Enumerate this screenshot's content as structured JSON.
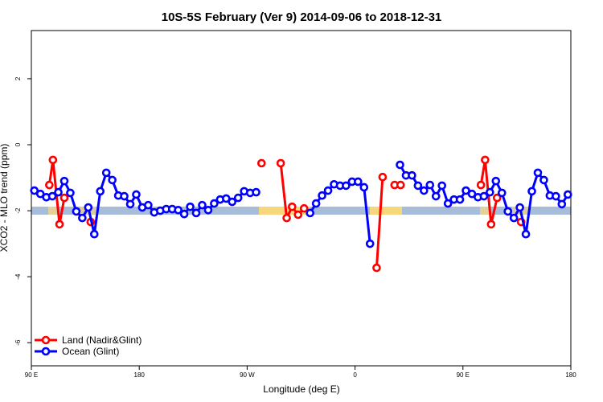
{
  "chart_data": {
    "type": "line",
    "title": "10S-5S February (Ver 9)   2014-09-06 to 2018-12-31",
    "x_label": "Longitude (deg E)",
    "y_label": "XCO2 - MLO trend (ppm)",
    "xlim": [
      90,
      540
    ],
    "xticks": [
      {
        "value": 90,
        "label": "90 E"
      },
      180,
      {
        "value": 270,
        "label": "90 W"
      },
      {
        "value": 360,
        "label": "0"
      },
      {
        "value": 450,
        "label": "90 E"
      },
      {
        "value": 540,
        "label": "180"
      }
    ],
    "ylim": [
      -6.7,
      3.46
    ],
    "yticks": [
      -6,
      -4,
      -2,
      0,
      2
    ],
    "legend": "bottom-left",
    "series": [
      {
        "name": "Land (Nadir&Glint)",
        "color": "#ff0000",
        "x": [
          105,
          108,
          113.5,
          117.5,
          null,
          139.5,
          null,
          282,
          null,
          298,
          303,
          307.5,
          312.5,
          317.5,
          null,
          378,
          383,
          null,
          393,
          398,
          null,
          465,
          468.5,
          473.5,
          478.5,
          null,
          498.5
        ],
        "values": [
          -1.22,
          -0.46,
          -2.41,
          -1.61,
          null,
          -2.34,
          null,
          -0.56,
          null,
          -0.56,
          -2.22,
          -1.88,
          -2.12,
          -1.93,
          null,
          -3.73,
          -0.98,
          null,
          -1.22,
          -1.22,
          null,
          -1.22,
          -0.46,
          -2.41,
          -1.61,
          null,
          -2.34
        ]
      },
      {
        "name": "Ocean (Glint)",
        "color": "#0000ff",
        "x": [
          92.5,
          97.5,
          102.5,
          107.5,
          112.5,
          117.5,
          122.5,
          127.5,
          132.5,
          137.5,
          142.5,
          147.5,
          152.5,
          157.5,
          162.5,
          167.5,
          172.5,
          177.5,
          182.5,
          187.5,
          192.5,
          197.5,
          202.5,
          207.5,
          212.5,
          217.5,
          222.5,
          227.5,
          232.5,
          237.5,
          242.5,
          247.5,
          252.5,
          257.5,
          262.5,
          267.5,
          272.5,
          277.5,
          282.5,
          287.5,
          292.5,
          297.5,
          302.5,
          307.5,
          312.5,
          317.5,
          322.5,
          327.5,
          332.5,
          337.5,
          342.5,
          347.5,
          352.5,
          357.5,
          362.5,
          367.5,
          372.5,
          377.5,
          382.5,
          387.5,
          392.5,
          397.5,
          402.5,
          407.5,
          412.5,
          417.5,
          422.5,
          427.5,
          432.5,
          437.5,
          442.5,
          447.5,
          452.5,
          457.5,
          462.5,
          467.5,
          472.5,
          477.5,
          482.5,
          487.5,
          492.5,
          497.5,
          502.5,
          507.5,
          512.5,
          517.5,
          522.5,
          527.5,
          532.5,
          537.5
        ],
        "values": [
          -1.39,
          -1.49,
          -1.59,
          -1.56,
          -1.44,
          -1.1,
          -1.46,
          -2.02,
          -2.22,
          -1.9,
          -2.71,
          -1.41,
          -0.85,
          -1.07,
          -1.54,
          -1.56,
          -1.8,
          -1.51,
          -1.9,
          -1.83,
          -2.05,
          -2.0,
          -1.95,
          -1.95,
          -1.98,
          -2.1,
          -1.88,
          -2.07,
          -1.83,
          -1.98,
          -1.78,
          -1.66,
          -1.63,
          -1.73,
          -1.61,
          -1.41,
          -1.46,
          -1.44,
          null,
          null,
          null,
          null,
          null,
          null,
          null,
          null,
          -2.07,
          -1.78,
          -1.54,
          -1.39,
          -1.2,
          -1.24,
          -1.24,
          -1.12,
          -1.12,
          -1.29,
          -3.0,
          null,
          null,
          null,
          null,
          -0.61,
          -0.93,
          -0.93,
          -1.24,
          -1.39,
          -1.22,
          -1.56,
          -1.24,
          -1.78,
          -1.66,
          -1.66,
          -1.39,
          -1.49,
          -1.59,
          -1.56,
          -1.44,
          -1.1,
          -1.46,
          -2.02,
          -2.22,
          -1.9,
          -2.71,
          -1.41,
          -0.85,
          -1.07,
          -1.54,
          -1.56,
          -1.8,
          -1.51
        ]
      }
    ]
  }
}
